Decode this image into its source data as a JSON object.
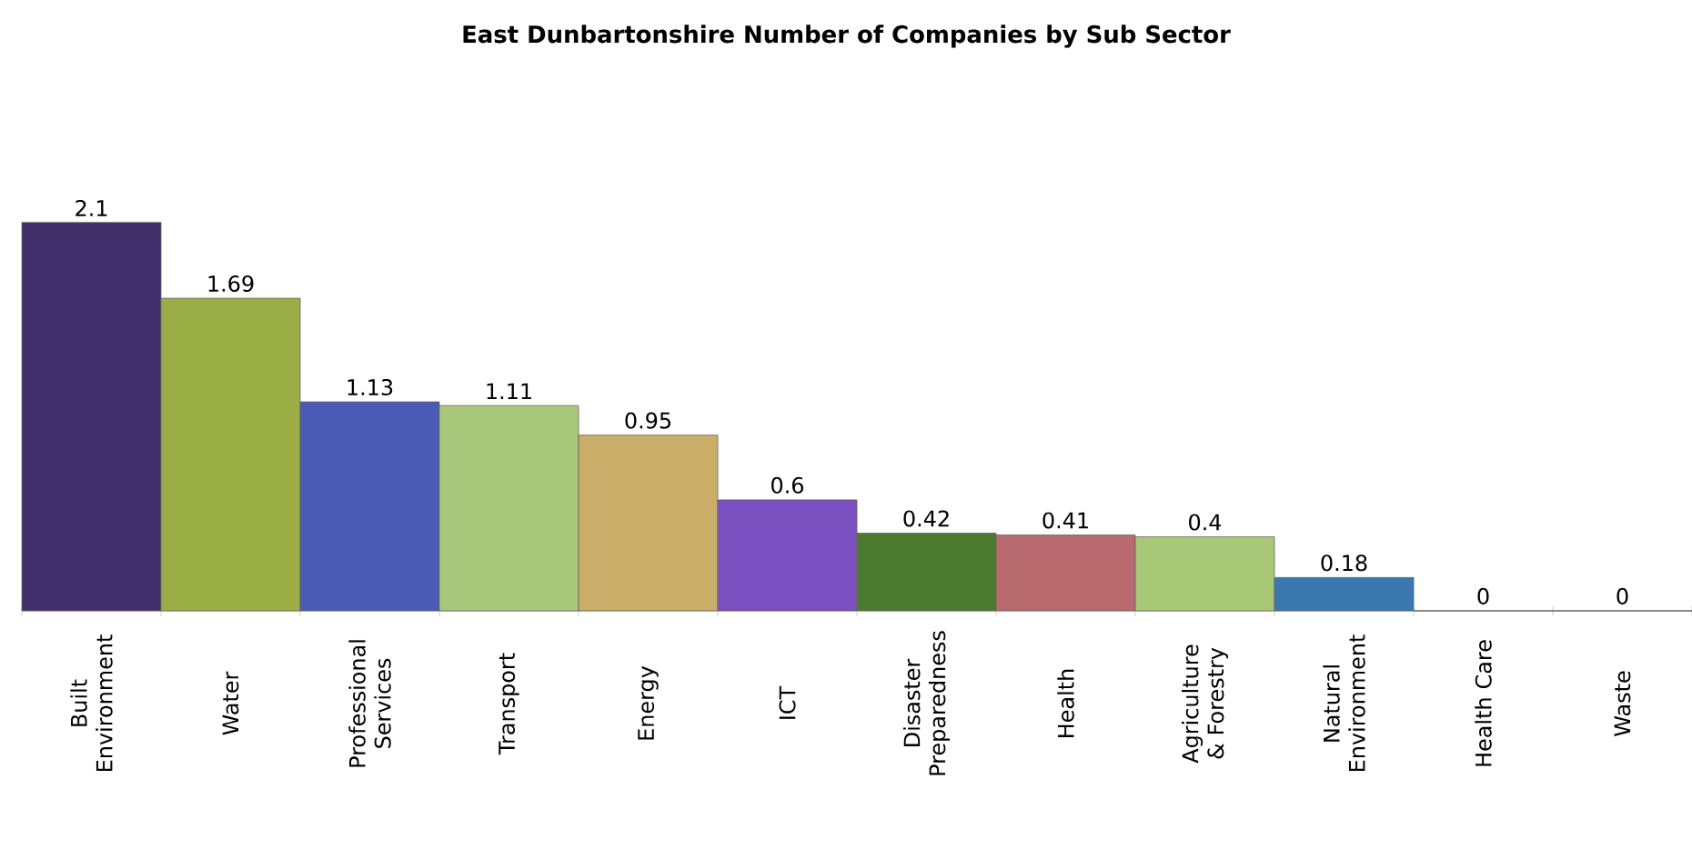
{
  "chart_data": {
    "type": "bar",
    "title": "East Dunbartonshire Number of Companies by Sub Sector",
    "categories": [
      "Built Environment",
      "Water",
      "Professional Services",
      "Transport",
      "Energy",
      "ICT",
      "Disaster Preparedness",
      "Health",
      "Agriculture & Forestry",
      "Natural Environment",
      "Health Care",
      "Waste"
    ],
    "values": [
      2.1,
      1.69,
      1.13,
      1.11,
      0.95,
      0.6,
      0.42,
      0.41,
      0.4,
      0.18,
      0,
      0
    ],
    "colors": [
      "#3f2e6a",
      "#9aae45",
      "#4a5bb5",
      "#a9c77a",
      "#c9ad68",
      "#7a4fc0",
      "#4a7a30",
      "#b86a6e",
      "#a8c878",
      "#3b78b0",
      "#808080",
      "#808080"
    ],
    "data_labels": true
  }
}
